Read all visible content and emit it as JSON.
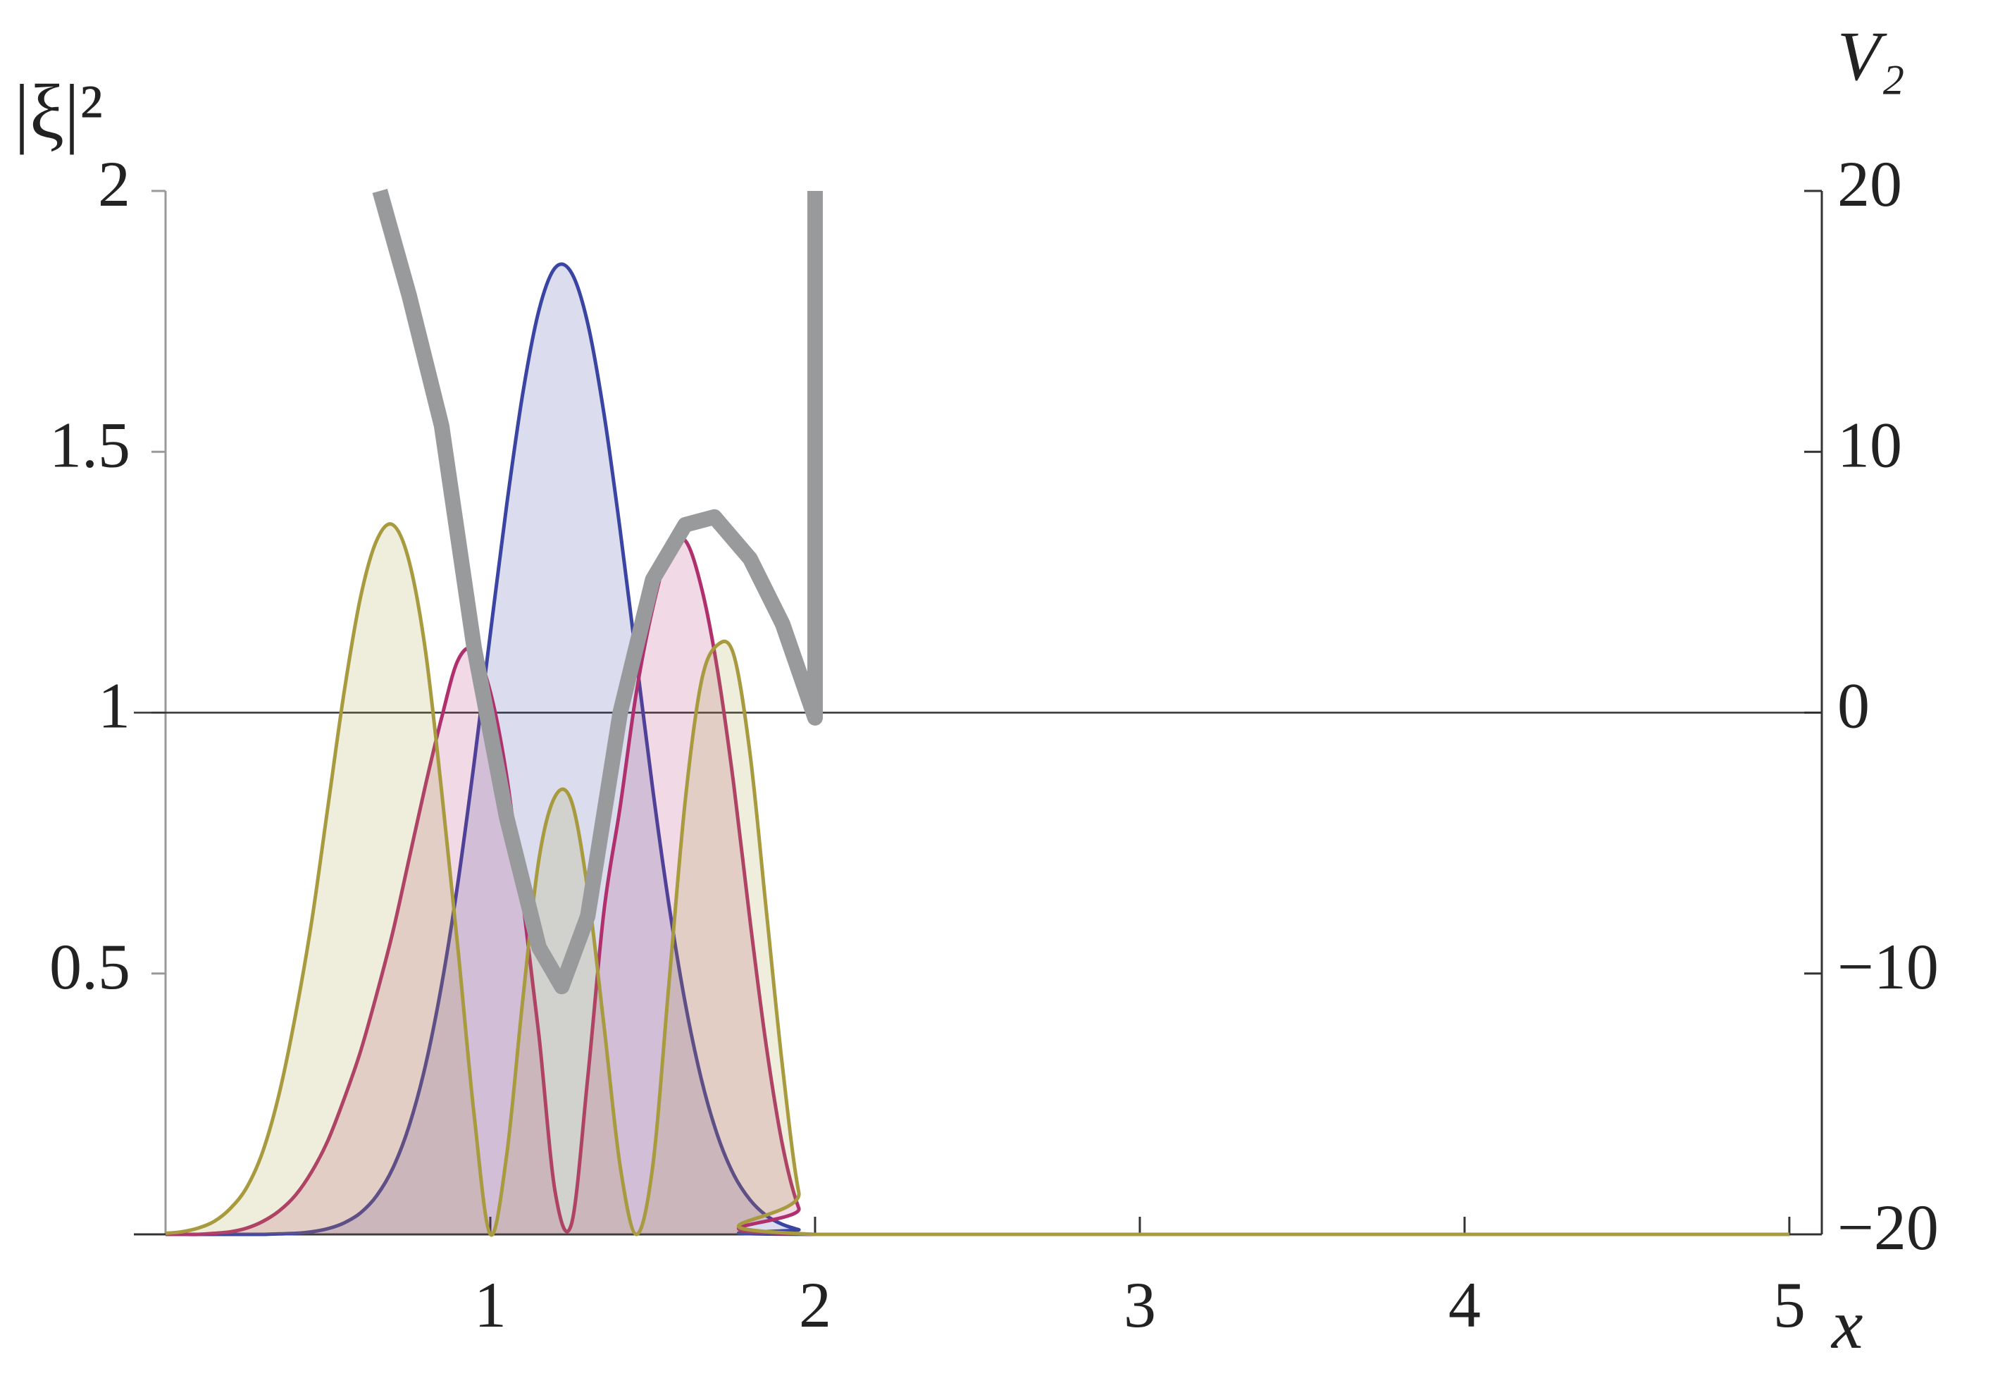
{
  "chart_data": {
    "type": "line",
    "ylabel": "|ξ|²",
    "y2label": "V₂",
    "xlabel": "x",
    "x": [
      0,
      0.05,
      0.1,
      0.15,
      0.2,
      0.25,
      0.3,
      0.35,
      0.4,
      0.45,
      0.5,
      0.55,
      0.6,
      0.65,
      0.7,
      0.75,
      0.8,
      0.85,
      0.9,
      0.95,
      1.0,
      1.05,
      1.1,
      1.15,
      1.2,
      1.25,
      1.3,
      1.35,
      1.4,
      1.45,
      1.5,
      1.55,
      1.6,
      1.65,
      1.7,
      1.75,
      1.8,
      1.85,
      1.9,
      1.95,
      2.0,
      5.0
    ],
    "series": [
      {
        "color": "#3a44a2",
        "fill": true,
        "values": [
          0,
          0,
          0,
          0,
          0,
          0,
          0,
          0.001,
          0.002,
          0.005,
          0.011,
          0.022,
          0.041,
          0.074,
          0.127,
          0.208,
          0.323,
          0.478,
          0.673,
          0.903,
          1.151,
          1.396,
          1.612,
          1.772,
          1.853,
          1.843,
          1.746,
          1.573,
          1.349,
          1.101,
          0.854,
          0.632,
          0.444,
          0.297,
          0.189,
          0.114,
          0.066,
          0.036,
          0.019,
          0.009,
          0,
          0
        ]
      },
      {
        "color": "#b0306e",
        "fill": true,
        "values": [
          0,
          0,
          0,
          0.002,
          0.005,
          0.012,
          0.025,
          0.045,
          0.075,
          0.12,
          0.18,
          0.26,
          0.35,
          0.46,
          0.58,
          0.72,
          0.86,
          0.99,
          1.1,
          1.12,
          1.04,
          0.88,
          0.64,
          0.38,
          0.08,
          0.02,
          0.3,
          0.62,
          0.82,
          1.04,
          1.2,
          1.31,
          1.33,
          1.24,
          1.08,
          0.86,
          0.6,
          0.36,
          0.17,
          0.05,
          0,
          0
        ]
      },
      {
        "color": "#a89a3e",
        "fill": true,
        "values": [
          0.002,
          0.005,
          0.012,
          0.025,
          0.05,
          0.09,
          0.16,
          0.27,
          0.42,
          0.6,
          0.82,
          1.04,
          1.22,
          1.33,
          1.36,
          1.29,
          1.12,
          0.85,
          0.55,
          0.23,
          0,
          0.15,
          0.45,
          0.72,
          0.84,
          0.83,
          0.66,
          0.4,
          0.13,
          0,
          0.13,
          0.48,
          0.83,
          1.06,
          1.13,
          1.11,
          0.92,
          0.62,
          0.32,
          0.08,
          0,
          0
        ]
      },
      {
        "color": "#999a9c",
        "axis": "y2",
        "x": [
          0.66,
          0.75,
          0.85,
          0.95,
          1.05,
          1.15,
          1.22,
          1.3,
          1.4,
          1.5,
          1.6,
          1.69,
          1.8,
          1.9,
          2.0,
          2.0
        ],
        "values": [
          20,
          16,
          11,
          2.5,
          -4,
          -9,
          -10.5,
          -7.8,
          0,
          5.1,
          7.2,
          7.5,
          5.9,
          3.4,
          -0.2,
          20
        ]
      }
    ],
    "xlim": [
      0,
      5.1
    ],
    "xticks": [
      1,
      2,
      3,
      4,
      5
    ],
    "ylim": [
      0,
      2
    ],
    "yticks": [
      0.5,
      1,
      1.5,
      2
    ],
    "y2lim": [
      -20,
      20
    ],
    "y2ticks": [
      {
        "value": -20,
        "label": "−20"
      },
      {
        "value": -10,
        "label": "−10"
      },
      0,
      10,
      20
    ],
    "y2_reference": 0
  }
}
